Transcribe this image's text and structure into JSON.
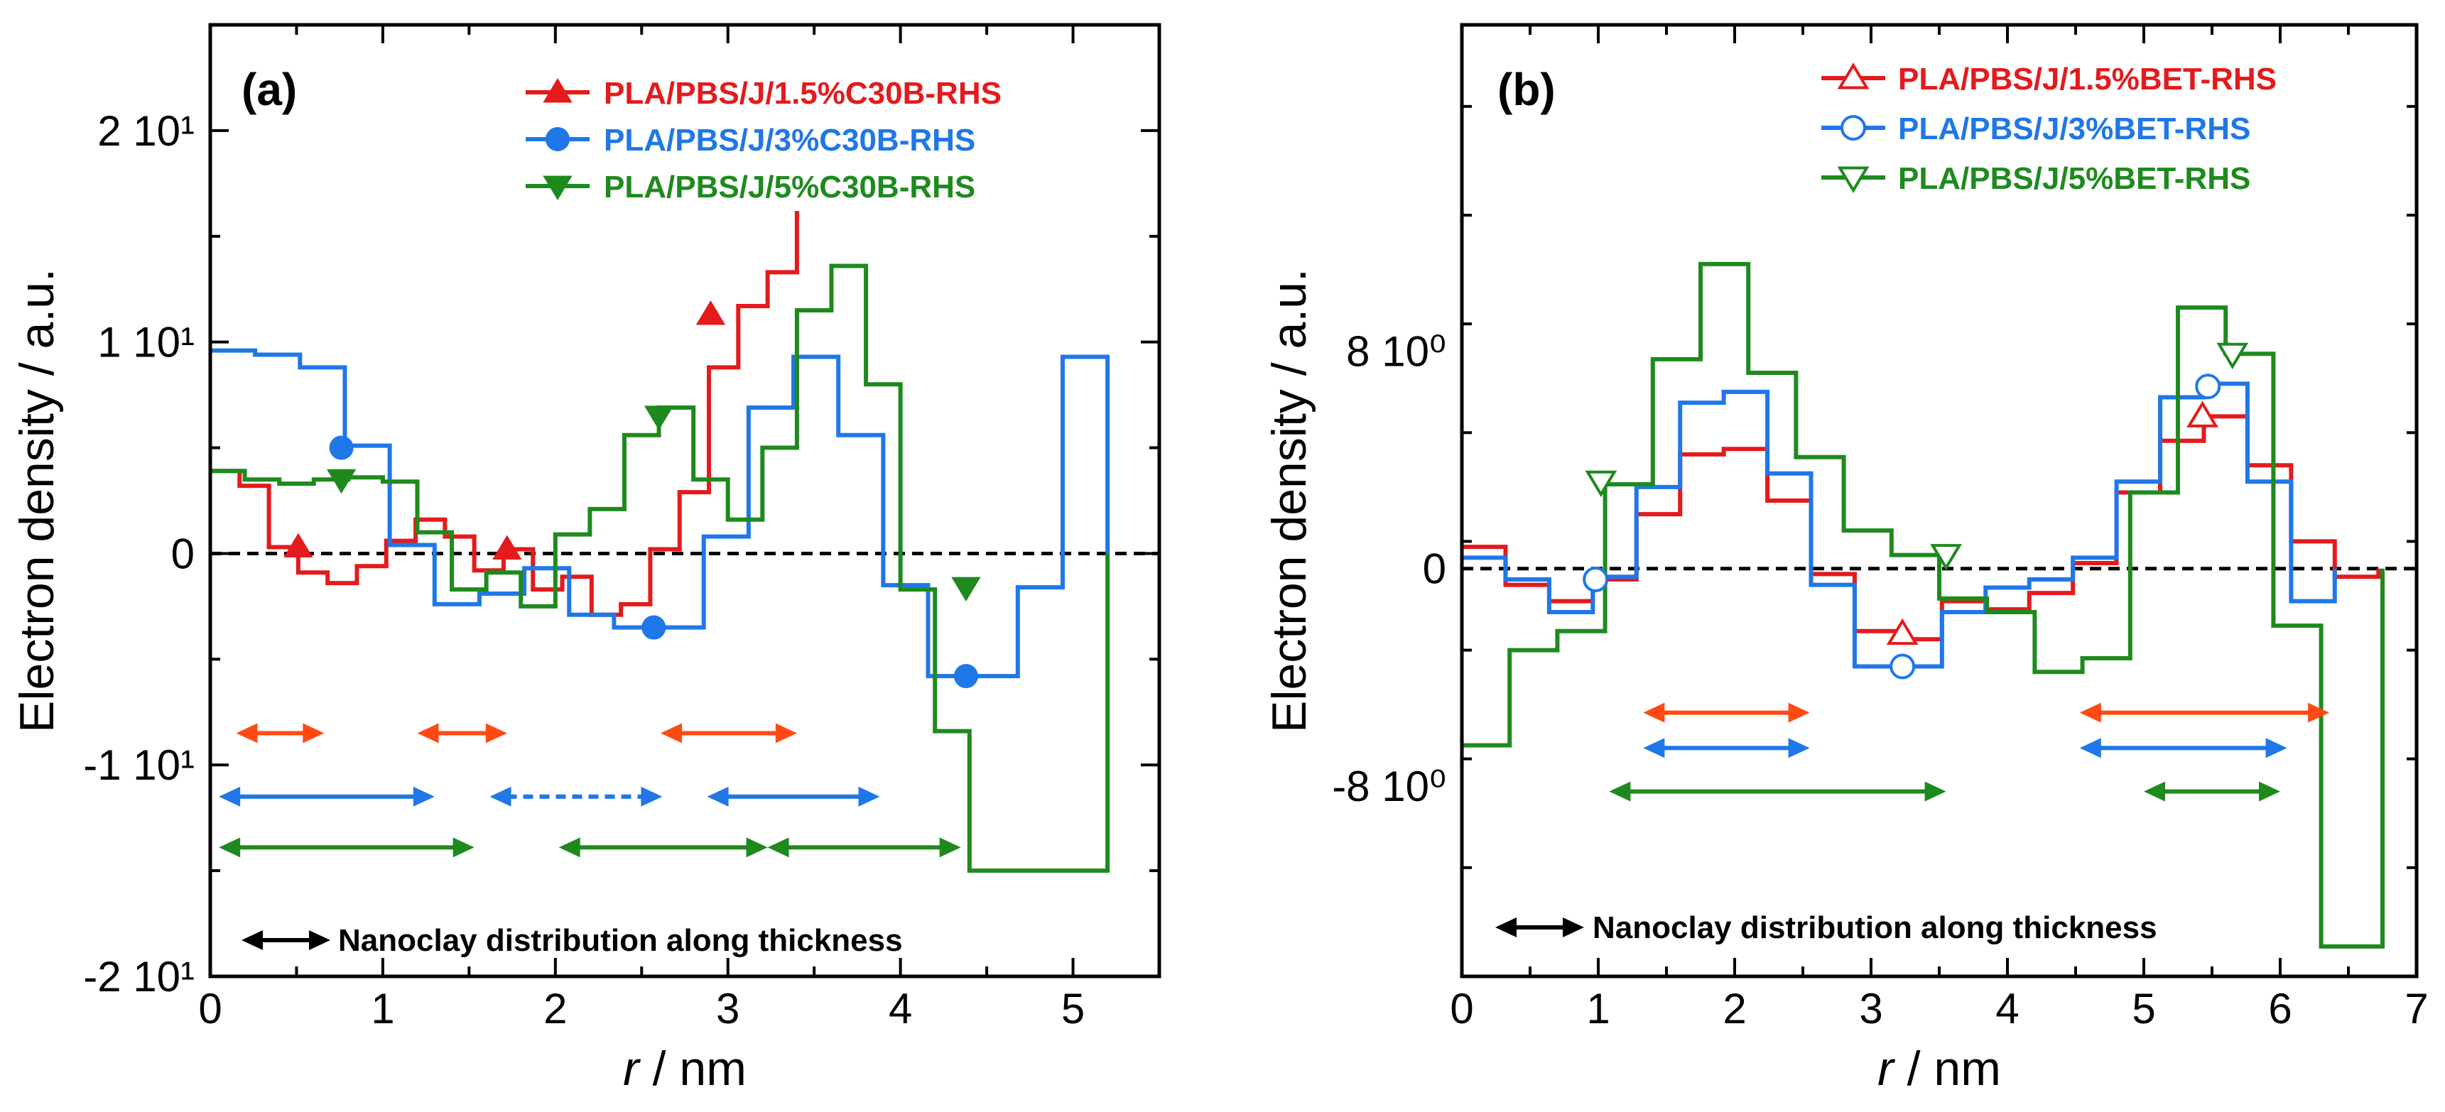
{
  "chart_data": [
    {
      "panel": "(a)",
      "type": "line",
      "step": true,
      "xlabel_italic": "r",
      "xlabel_rest": " / nm",
      "ylabel": "Electron density / a.u.",
      "xlim": [
        0,
        5.5
      ],
      "ylim": [
        -20,
        25
      ],
      "x_ticks": [
        0,
        1,
        2,
        3,
        4,
        5
      ],
      "x_tick_labels": [
        "0",
        "1",
        "2",
        "3",
        "4",
        "5"
      ],
      "y_ticks": [
        20,
        10,
        0,
        -10,
        -20
      ],
      "y_tick_labels": [
        "2 10¹",
        "1 10¹",
        "0",
        "-1 10¹",
        "-2 10¹"
      ],
      "zero_line": true,
      "series": [
        {
          "name": "PLA/PBS/J/1.5%C30B-RHS",
          "color": "#e41a1c",
          "marker": "triangle-up",
          "filled": true,
          "edges": [
            0,
            0.17,
            0.34,
            0.51,
            0.68,
            0.85,
            1.02,
            1.19,
            1.36,
            1.53,
            1.7,
            1.87,
            2.04,
            2.21,
            2.38,
            2.55,
            2.72,
            2.89,
            3.06,
            3.23,
            3.4
          ],
          "values": [
            3.9,
            3.2,
            0.3,
            -0.9,
            -1.4,
            -0.6,
            0.6,
            1.6,
            0.8,
            -0.8,
            0.2,
            -1.7,
            -1.1,
            -2.9,
            -2.4,
            0.2,
            2.9,
            8.8,
            11.7,
            13.3,
            16.2
          ],
          "markers_x": [
            0.51,
            1.72,
            2.9
          ],
          "markers_y": [
            0.3,
            0.2,
            11.3
          ]
        },
        {
          "name": "PLA/PBS/J/3%C30B-RHS",
          "color": "#1f77e8",
          "marker": "circle",
          "filled": true,
          "edges": [
            0,
            0.26,
            0.52,
            0.78,
            1.04,
            1.3,
            1.56,
            1.82,
            2.08,
            2.34,
            2.6,
            2.86,
            3.12,
            3.38,
            3.64,
            3.9,
            4.16,
            4.42,
            4.68,
            4.94,
            5.2
          ],
          "values": [
            9.6,
            9.4,
            8.8,
            5.1,
            0.4,
            -2.4,
            -1.9,
            -0.7,
            -2.9,
            -3.5,
            -3.5,
            0.8,
            6.9,
            9.3,
            5.6,
            -1.5,
            -5.8,
            -5.8,
            -1.6,
            9.3
          ],
          "markers_x": [
            0.76,
            2.57,
            4.38
          ],
          "markers_y": [
            5.0,
            -3.5,
            -5.8
          ]
        },
        {
          "name": "PLA/PBS/J/5%C30B-RHS",
          "color": "#1e8a1e",
          "marker": "triangle-down",
          "filled": true,
          "edges": [
            0,
            0.2,
            0.4,
            0.6,
            0.8,
            1.0,
            1.2,
            1.4,
            1.6,
            1.8,
            2.0,
            2.2,
            2.4,
            2.6,
            2.8,
            3.0,
            3.2,
            3.4,
            3.6,
            3.8,
            4.0,
            4.2,
            4.4,
            4.6,
            4.8,
            5.0,
            5.2
          ],
          "values": [
            3.9,
            3.5,
            3.3,
            3.5,
            3.6,
            3.4,
            1.0,
            -1.7,
            -0.9,
            -2.5,
            0.9,
            2.1,
            5.6,
            6.9,
            3.5,
            1.6,
            5.0,
            11.5,
            13.6,
            8.0,
            -1.7,
            -8.4,
            -15.0,
            -15.0,
            -15.0,
            -15.0
          ],
          "markers_x": [
            0.76,
            2.6,
            4.38
          ],
          "markers_y": [
            3.5,
            6.5,
            -1.6
          ]
        }
      ],
      "arrows": [
        {
          "color": "#ff4a14",
          "x1": 0.15,
          "x2": 0.66,
          "y": -8.5,
          "dashed": false
        },
        {
          "color": "#ff4a14",
          "x1": 1.2,
          "x2": 1.72,
          "y": -8.5,
          "dashed": false
        },
        {
          "color": "#ff4a14",
          "x1": 2.61,
          "x2": 3.4,
          "y": -8.5,
          "dashed": false
        },
        {
          "color": "#1f77e8",
          "x1": 0.05,
          "x2": 1.3,
          "y": -11.5,
          "dashed": false
        },
        {
          "color": "#1f77e8",
          "x1": 1.62,
          "x2": 2.62,
          "y": -11.5,
          "dashed": true
        },
        {
          "color": "#1f77e8",
          "x1": 2.88,
          "x2": 3.88,
          "y": -11.5,
          "dashed": false
        },
        {
          "color": "#1e8a1e",
          "x1": 0.05,
          "x2": 1.53,
          "y": -13.9,
          "dashed": false
        },
        {
          "color": "#1e8a1e",
          "x1": 2.02,
          "x2": 3.23,
          "y": -13.9,
          "dashed": false
        },
        {
          "color": "#1e8a1e",
          "x1": 3.23,
          "x2": 4.35,
          "y": -13.9,
          "dashed": false
        }
      ],
      "note": "Nanoclay distribution along thickness"
    },
    {
      "panel": "(b)",
      "type": "line",
      "step": true,
      "xlabel_italic": "r",
      "xlabel_rest": " / nm",
      "ylabel": "Electron density / a.u.",
      "xlim": [
        0,
        7
      ],
      "ylim": [
        -15,
        20
      ],
      "x_ticks": [
        0,
        1,
        2,
        3,
        4,
        5,
        6,
        7
      ],
      "x_tick_labels": [
        "0",
        "1",
        "2",
        "3",
        "4",
        "5",
        "6",
        "7"
      ],
      "y_ticks": [
        8,
        0,
        -8
      ],
      "y_tick_labels": [
        "8 10⁰",
        "0",
        "-8 10⁰"
      ],
      "zero_line": true,
      "series": [
        {
          "name": "PLA/PBS/J/1.5%BET-RHS",
          "color": "#e41a1c",
          "marker": "triangle-up",
          "filled": false,
          "edges": [
            0,
            0.32,
            0.64,
            0.96,
            1.28,
            1.6,
            1.92,
            2.24,
            2.56,
            2.88,
            3.2,
            3.52,
            3.84,
            4.16,
            4.48,
            4.8,
            5.12,
            5.44,
            5.76,
            6.08,
            6.4,
            6.72
          ],
          "values": [
            0.8,
            -0.6,
            -1.2,
            -0.4,
            2.0,
            4.2,
            4.4,
            2.5,
            -0.2,
            -2.3,
            -2.6,
            -1.2,
            -1.5,
            -0.9,
            0.2,
            2.8,
            4.7,
            5.6,
            3.8,
            1.0,
            -0.3
          ],
          "markers_x": [
            3.23,
            5.43
          ],
          "markers_y": [
            -2.4,
            5.6
          ]
        },
        {
          "name": "PLA/PBS/J/3%BET-RHS",
          "color": "#1f77e8",
          "marker": "circle",
          "filled": false,
          "edges": [
            0,
            0.32,
            0.64,
            0.96,
            1.28,
            1.6,
            1.92,
            2.24,
            2.56,
            2.88,
            3.2,
            3.52,
            3.84,
            4.16,
            4.48,
            4.8,
            5.12,
            5.44,
            5.76,
            6.08,
            6.4
          ],
          "values": [
            0.4,
            -0.4,
            -1.6,
            -0.3,
            3.0,
            6.1,
            6.5,
            3.5,
            -0.6,
            -3.6,
            -3.6,
            -1.6,
            -0.7,
            -0.4,
            0.4,
            3.2,
            6.3,
            6.8,
            3.2,
            -1.2
          ],
          "markers_x": [
            0.98,
            3.23,
            5.47
          ],
          "markers_y": [
            -0.4,
            -3.6,
            6.7
          ]
        },
        {
          "name": "PLA/PBS/J/5%BET-RHS",
          "color": "#1e8a1e",
          "marker": "triangle-down",
          "filled": false,
          "edges": [
            0,
            0.35,
            0.7,
            1.05,
            1.4,
            1.75,
            2.1,
            2.45,
            2.8,
            3.15,
            3.5,
            3.85,
            4.2,
            4.55,
            4.9,
            5.25,
            5.6,
            5.95,
            6.3,
            6.75
          ],
          "values": [
            -6.5,
            -3.0,
            -2.3,
            3.1,
            7.7,
            11.2,
            7.2,
            4.1,
            1.4,
            0.5,
            -1.1,
            -1.6,
            -3.8,
            -3.3,
            2.8,
            9.6,
            7.9,
            -2.1,
            -13.9
          ],
          "markers_x": [
            1.02,
            3.55,
            5.65
          ],
          "markers_y": [
            3.2,
            0.5,
            7.9
          ]
        }
      ],
      "arrows": [
        {
          "color": "#ff4a14",
          "x1": 1.33,
          "x2": 2.55,
          "y": -5.3,
          "dashed": false
        },
        {
          "color": "#ff4a14",
          "x1": 4.53,
          "x2": 6.36,
          "y": -5.3,
          "dashed": false
        },
        {
          "color": "#1f77e8",
          "x1": 1.33,
          "x2": 2.55,
          "y": -6.6,
          "dashed": false
        },
        {
          "color": "#1f77e8",
          "x1": 4.53,
          "x2": 6.05,
          "y": -6.6,
          "dashed": false
        },
        {
          "color": "#1e8a1e",
          "x1": 1.08,
          "x2": 3.55,
          "y": -8.2,
          "dashed": false
        },
        {
          "color": "#1e8a1e",
          "x1": 5.0,
          "x2": 6.0,
          "y": -8.2,
          "dashed": false
        }
      ],
      "note": "Nanoclay distribution along thickness"
    }
  ]
}
